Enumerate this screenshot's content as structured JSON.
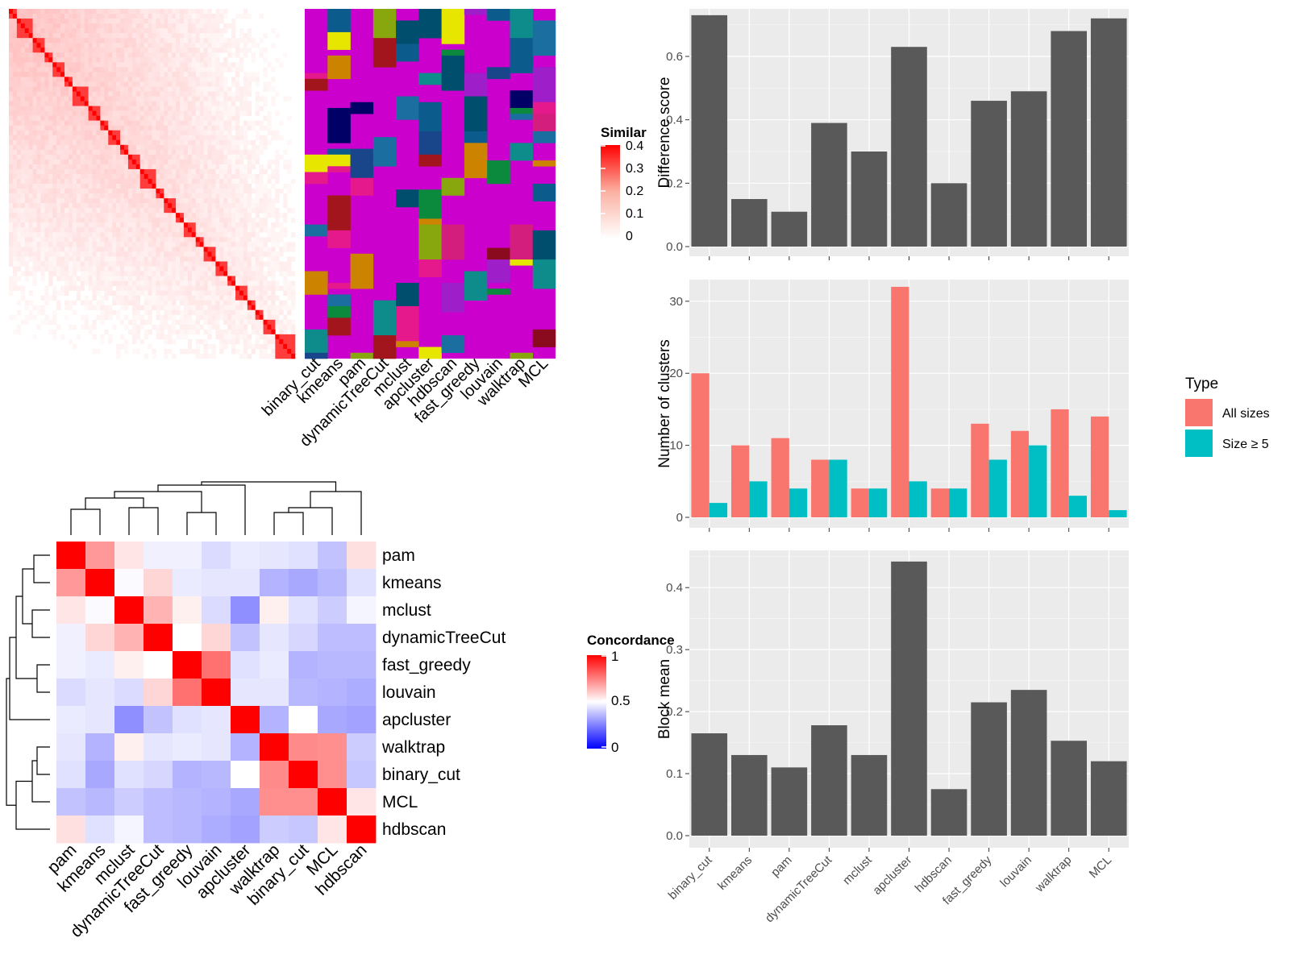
{
  "methods_panel": {
    "column_labels": [
      "binary_cut",
      "kmeans",
      "pam",
      "dynamicTreeCut",
      "mclust",
      "apcluster",
      "hdbscan",
      "fast_greedy",
      "louvain",
      "walktrap",
      "MCL"
    ],
    "similarity_legend": {
      "title": "Similarity",
      "ticks": [
        "0.4",
        "0.3",
        "0.2",
        "0.1",
        "0"
      ]
    }
  },
  "concordance": {
    "legend": {
      "title": "Concordance",
      "ticks": [
        "1",
        "0.5",
        "0"
      ]
    },
    "row_labels": [
      "pam",
      "kmeans",
      "mclust",
      "dynamicTreeCut",
      "fast_greedy",
      "louvain",
      "apcluster",
      "walktrap",
      "binary_cut",
      "MCL",
      "hdbscan"
    ],
    "col_labels": [
      "pam",
      "kmeans",
      "mclust",
      "dynamicTreeCut",
      "fast_greedy",
      "louvain",
      "apcluster",
      "walktrap",
      "binary_cut",
      "MCL",
      "hdbscan"
    ]
  },
  "colors": {
    "bar_dark": "#595959",
    "panel_bg": "#ebebeb",
    "all_sizes": "#f8766d",
    "size_ge5": "#00bfc4",
    "high": "#ff0000",
    "low": "#0000ff"
  },
  "chart_data": [
    {
      "type": "bar",
      "ylabel": "Difference score",
      "ylim": [
        0,
        0.75
      ],
      "yticks": [
        "0.0",
        "0.2",
        "0.4",
        "0.6"
      ],
      "categories": [
        "binary_cut",
        "kmeans",
        "pam",
        "dynamicTreeCut",
        "mclust",
        "apcluster",
        "hdbscan",
        "fast_greedy",
        "louvain",
        "walktrap",
        "MCL"
      ],
      "values": [
        0.73,
        0.15,
        0.11,
        0.39,
        0.3,
        0.63,
        0.2,
        0.46,
        0.49,
        0.68,
        0.72
      ]
    },
    {
      "type": "bar",
      "ylabel": "Number of clusters",
      "ylim": [
        0,
        33
      ],
      "yticks": [
        "0",
        "10",
        "20",
        "30"
      ],
      "legend": {
        "title": "Type",
        "entries": [
          "All sizes",
          "Size ≥ 5"
        ]
      },
      "categories": [
        "binary_cut",
        "kmeans",
        "pam",
        "dynamicTreeCut",
        "mclust",
        "apcluster",
        "hdbscan",
        "fast_greedy",
        "louvain",
        "walktrap",
        "MCL"
      ],
      "series": [
        {
          "name": "All sizes",
          "values": [
            20,
            10,
            11,
            8,
            4,
            32,
            4,
            13,
            12,
            15,
            14
          ]
        },
        {
          "name": "Size ≥ 5",
          "values": [
            2,
            5,
            4,
            8,
            4,
            5,
            4,
            8,
            10,
            3,
            1
          ]
        }
      ]
    },
    {
      "type": "bar",
      "ylabel": "Block mean",
      "ylim": [
        0,
        0.46
      ],
      "yticks": [
        "0.0",
        "0.1",
        "0.2",
        "0.3",
        "0.4"
      ],
      "categories": [
        "binary_cut",
        "kmeans",
        "pam",
        "dynamicTreeCut",
        "mclust",
        "apcluster",
        "hdbscan",
        "fast_greedy",
        "louvain",
        "walktrap",
        "MCL"
      ],
      "values": [
        0.165,
        0.13,
        0.11,
        0.178,
        0.13,
        0.442,
        0.075,
        0.215,
        0.235,
        0.153,
        0.12
      ]
    },
    {
      "type": "heatmap",
      "rows": [
        "pam",
        "kmeans",
        "mclust",
        "dynamicTreeCut",
        "fast_greedy",
        "louvain",
        "apcluster",
        "walktrap",
        "binary_cut",
        "MCL",
        "hdbscan"
      ],
      "cols": [
        "pam",
        "kmeans",
        "mclust",
        "dynamicTreeCut",
        "fast_greedy",
        "louvain",
        "apcluster",
        "walktrap",
        "binary_cut",
        "MCL",
        "hdbscan"
      ],
      "values": [
        [
          1.0,
          0.7,
          0.55,
          0.47,
          0.47,
          0.43,
          0.46,
          0.45,
          0.44,
          0.38,
          0.56
        ],
        [
          0.7,
          1.0,
          0.49,
          0.58,
          0.46,
          0.45,
          0.45,
          0.35,
          0.33,
          0.36,
          0.44
        ],
        [
          0.55,
          0.49,
          1.0,
          0.65,
          0.53,
          0.43,
          0.28,
          0.53,
          0.44,
          0.4,
          0.48
        ],
        [
          0.47,
          0.58,
          0.65,
          1.0,
          0.5,
          0.58,
          0.38,
          0.45,
          0.42,
          0.37,
          0.37
        ],
        [
          0.47,
          0.46,
          0.53,
          0.5,
          1.0,
          0.78,
          0.44,
          0.46,
          0.35,
          0.36,
          0.36
        ],
        [
          0.43,
          0.45,
          0.43,
          0.58,
          0.78,
          1.0,
          0.45,
          0.45,
          0.36,
          0.35,
          0.34
        ],
        [
          0.46,
          0.45,
          0.28,
          0.38,
          0.44,
          0.45,
          1.0,
          0.35,
          0.5,
          0.33,
          0.32
        ],
        [
          0.45,
          0.35,
          0.53,
          0.45,
          0.46,
          0.45,
          0.35,
          1.0,
          0.73,
          0.72,
          0.4
        ],
        [
          0.44,
          0.33,
          0.44,
          0.42,
          0.35,
          0.36,
          0.5,
          0.73,
          1.0,
          0.72,
          0.39
        ],
        [
          0.38,
          0.36,
          0.4,
          0.37,
          0.36,
          0.35,
          0.33,
          0.72,
          0.72,
          1.0,
          0.55
        ],
        [
          0.56,
          0.44,
          0.48,
          0.37,
          0.36,
          0.34,
          0.32,
          0.4,
          0.39,
          0.55,
          1.0
        ]
      ]
    }
  ]
}
